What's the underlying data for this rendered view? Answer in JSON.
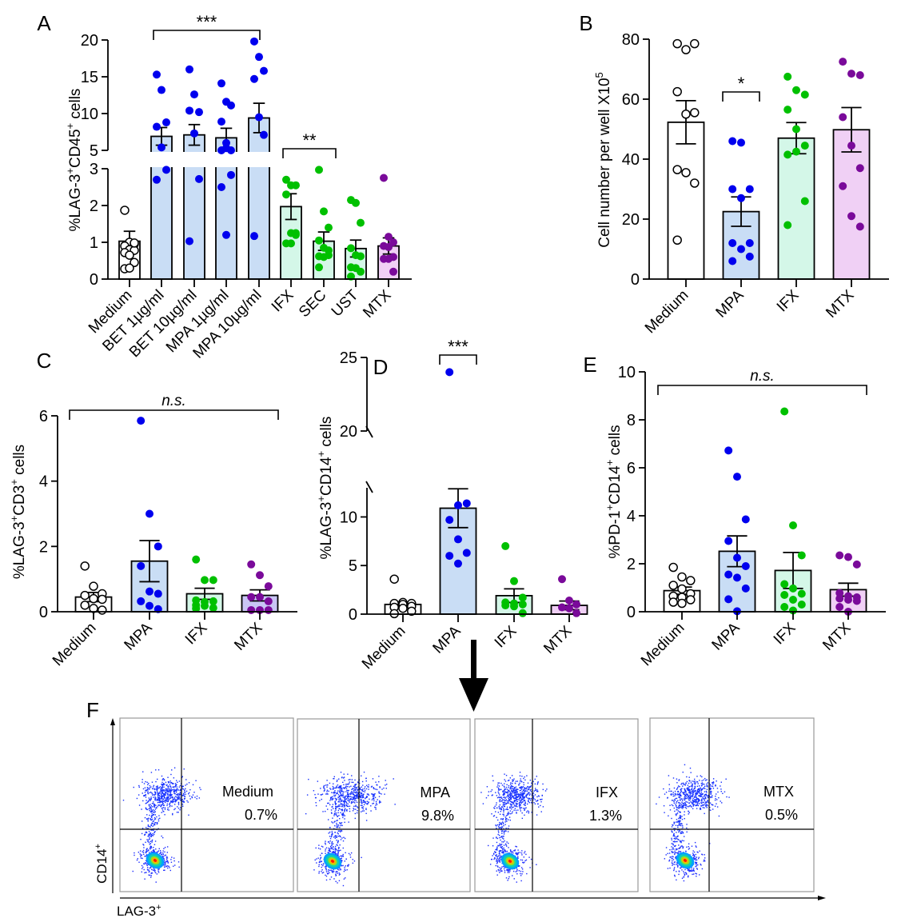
{
  "colors": {
    "medium_fill": "#ffffff",
    "medium_point": "#000000",
    "blue_fill": "#c9ddf5",
    "blue_point": "#0000ee",
    "green_fill": "#d4f7e8",
    "green_point": "#00c000",
    "purple_fill": "#f0d0f5",
    "lavender_fill": "#c9c5f5",
    "purple_point": "#7a0a9a"
  },
  "chart_data": [
    {
      "id": "A",
      "panel_label": "A",
      "type": "bar",
      "ylabel": "%LAG-3+CD45+ cells",
      "ylabel_parts": [
        "%LAG-3",
        "+",
        "CD45",
        "+",
        " cells"
      ],
      "broken_axis": {
        "lower": [
          0,
          3
        ],
        "upper": [
          5,
          20
        ]
      },
      "yticks_lower": [
        0,
        1,
        2,
        3
      ],
      "yticks_upper": [
        5,
        10,
        15,
        20
      ],
      "categories": [
        "Medium",
        "BET 1µg/ml",
        "BET 10µg/ml",
        "MPA 1µg/ml",
        "MPA 10µg/ml",
        "IFX",
        "SEC",
        "UST",
        "MTX"
      ],
      "category_colors": [
        "medium",
        "blue",
        "blue",
        "blue",
        "blue",
        "green",
        "green",
        "green",
        "purple"
      ],
      "means": [
        1.03,
        6.9,
        7.1,
        6.7,
        9.4,
        1.97,
        1.03,
        0.83,
        0.9
      ],
      "sem": [
        0.27,
        1.2,
        1.4,
        1.3,
        2.0,
        0.35,
        0.25,
        0.23,
        0.22
      ],
      "points": [
        [
          1.87,
          1.0,
          0.95,
          0.9,
          0.8,
          0.78,
          0.72,
          0.65,
          0.45,
          0.28,
          0.3,
          0.98
        ],
        [
          15.3,
          13.2,
          8.8,
          8.2,
          5.4,
          2.97,
          2.7
        ],
        [
          16.0,
          12.6,
          10.2,
          10.4,
          7.3,
          2.72,
          1.03
        ],
        [
          14.1,
          11.6,
          11.1,
          8.9,
          6.0,
          5.0,
          5.0,
          5.3,
          2.83,
          2.5,
          1.2
        ],
        [
          19.8,
          17.7,
          15.8,
          14.7,
          9.5,
          7.1,
          1.17
        ],
        [
          2.7,
          2.55,
          2.55,
          2.3,
          1.25,
          1.25,
          0.97,
          0.97,
          1.2
        ],
        [
          2.97,
          1.84,
          1.4,
          1.05,
          0.85,
          0.78,
          0.62,
          0.6,
          0.65,
          0.32
        ],
        [
          2.15,
          2.07,
          1.53,
          0.84,
          0.65,
          0.62,
          0.32,
          0.3,
          0.2,
          0.07
        ],
        [
          2.75,
          1.15,
          1.0,
          0.9,
          0.87,
          0.6,
          0.55,
          0.55,
          0.2
        ]
      ],
      "significance": [
        {
          "label": "***",
          "from": 1,
          "to": 4
        },
        {
          "label": "**",
          "from": 5,
          "to": 6
        }
      ]
    },
    {
      "id": "B",
      "panel_label": "B",
      "type": "bar",
      "ylabel": "Cell number per well X10^5",
      "ylabel_parts": [
        "Cell number per well X10",
        "5"
      ],
      "ylim": [
        0,
        80
      ],
      "yticks": [
        0,
        20,
        40,
        60,
        80
      ],
      "categories": [
        "Medium",
        "MPA",
        "IFX",
        "MTX"
      ],
      "category_colors": [
        "medium",
        "blue",
        "green",
        "purple"
      ],
      "means": [
        52.3,
        22.5,
        47.0,
        49.8
      ],
      "sem": [
        7.2,
        4.9,
        5.2,
        7.4
      ],
      "points": [
        [
          78.5,
          76.5,
          78.5,
          62.5,
          55.0,
          55.5,
          36.5,
          35.5,
          32.0,
          13.0
        ],
        [
          46.0,
          45.5,
          30.0,
          30.0,
          27.0,
          12.0,
          12.0,
          10.0,
          7.5,
          6.0
        ],
        [
          67.5,
          63.0,
          61.5,
          56.5,
          50.0,
          44.5,
          41.5,
          42.5,
          26.0,
          18.0
        ],
        [
          72.5,
          68.5,
          68.0,
          54.0,
          44.5,
          37.0,
          31.0,
          21.0,
          17.5
        ]
      ],
      "significance": [
        {
          "label": "*",
          "from": 1,
          "to": 1
        }
      ]
    },
    {
      "id": "C",
      "panel_label": "C",
      "type": "bar",
      "ylabel": "%LAG-3+CD3+ cells",
      "ylabel_parts": [
        "%LAG-3",
        "+",
        "CD3",
        "+",
        " cells"
      ],
      "ylim": [
        0,
        6
      ],
      "yticks": [
        0,
        2,
        4,
        6
      ],
      "categories": [
        "Medium",
        "MPA",
        "IFX",
        "MTX"
      ],
      "category_colors": [
        "medium",
        "blue",
        "green",
        "lavender"
      ],
      "means": [
        0.45,
        1.55,
        0.55,
        0.5
      ],
      "sem": [
        0.14,
        0.63,
        0.17,
        0.17
      ],
      "points": [
        [
          1.4,
          0.78,
          0.55,
          0.5,
          0.4,
          0.38,
          0.2,
          0.1,
          0.05
        ],
        [
          5.85,
          3.0,
          2.0,
          1.4,
          0.62,
          0.55,
          0.32,
          0.18,
          0.08
        ],
        [
          1.6,
          0.97,
          0.97,
          0.35,
          0.3,
          0.32,
          0.2,
          0.18,
          0.12,
          0.1
        ],
        [
          1.45,
          1.12,
          0.78,
          0.45,
          0.45,
          0.32,
          0.05,
          0.05,
          0.05
        ]
      ],
      "significance": [
        {
          "label": "n.s.",
          "from": 0,
          "to": 3
        }
      ]
    },
    {
      "id": "D",
      "panel_label": "D",
      "type": "bar",
      "ylabel": "%LAG-3+CD14+ cells",
      "ylabel_parts": [
        "%LAG-3",
        "+",
        "CD14",
        "+",
        " cells"
      ],
      "broken_axis": {
        "lower": [
          0,
          13
        ],
        "upper": [
          20,
          25
        ]
      },
      "yticks_lower": [
        0,
        5,
        10
      ],
      "yticks_upper": [
        20,
        25
      ],
      "categories": [
        "Medium",
        "MPA",
        "IFX",
        "MTX"
      ],
      "category_colors": [
        "medium",
        "blue",
        "green",
        "purple"
      ],
      "means": [
        1.0,
        10.9,
        1.9,
        0.9
      ],
      "sem": [
        0.2,
        2.0,
        0.7,
        0.45
      ],
      "points": [
        [
          3.6,
          1.2,
          1.1,
          1.1,
          1.0,
          0.8,
          0.7,
          0.6,
          0.3,
          0.05
        ],
        [
          24.0,
          11.2,
          11.4,
          9.7,
          7.7,
          6.3,
          6.0,
          5.2
        ],
        [
          7.0,
          3.4,
          1.7,
          1.2,
          1.1,
          1.0,
          0.9,
          0.8,
          0.1
        ],
        [
          3.6,
          1.4,
          1.0,
          0.7,
          0.6,
          0.1
        ]
      ],
      "significance": [
        {
          "label": "***",
          "from": 1,
          "to": 1
        }
      ]
    },
    {
      "id": "E",
      "panel_label": "E",
      "type": "bar",
      "ylabel": "%PD-1+CD14+ cells",
      "ylabel_parts": [
        "%PD-1",
        "+",
        "CD14",
        "+",
        " cells"
      ],
      "ylim": [
        0,
        10
      ],
      "yticks": [
        0,
        2,
        4,
        6,
        8,
        10
      ],
      "categories": [
        "Medium",
        "MPA",
        "IFX",
        "MTX"
      ],
      "category_colors": [
        "medium",
        "blue",
        "green",
        "purple"
      ],
      "means": [
        0.88,
        2.52,
        1.72,
        0.92
      ],
      "sem": [
        0.15,
        0.64,
        0.75,
        0.27
      ],
      "points": [
        [
          1.85,
          1.45,
          1.3,
          1.1,
          0.95,
          0.75,
          0.65,
          0.6,
          0.5,
          0.4,
          0.35
        ],
        [
          6.72,
          5.63,
          3.85,
          2.95,
          2.25,
          1.9,
          1.55,
          1.42,
          0.97,
          0.52,
          0.02
        ],
        [
          8.35,
          3.6,
          2.35,
          1.15,
          0.97,
          0.75,
          0.7,
          0.5,
          0.3,
          0.2,
          0.05
        ],
        [
          2.35,
          2.28,
          1.97,
          0.78,
          0.65,
          0.6,
          0.55,
          0.5,
          0.45,
          0.2,
          0.0
        ]
      ],
      "significance": [
        {
          "label": "n.s.",
          "from": 0,
          "to": 3
        }
      ]
    }
  ],
  "panel_f": {
    "label": "F",
    "x_axis_label": "LAG-3",
    "x_axis_sup": "+",
    "y_axis_label": "CD14",
    "y_axis_sup": "+",
    "plots": [
      {
        "name": "Medium",
        "percent": "0.7%"
      },
      {
        "name": "MPA",
        "percent": "9.8%"
      },
      {
        "name": "IFX",
        "percent": "1.3%"
      },
      {
        "name": "MTX",
        "percent": "0.5%"
      }
    ]
  }
}
